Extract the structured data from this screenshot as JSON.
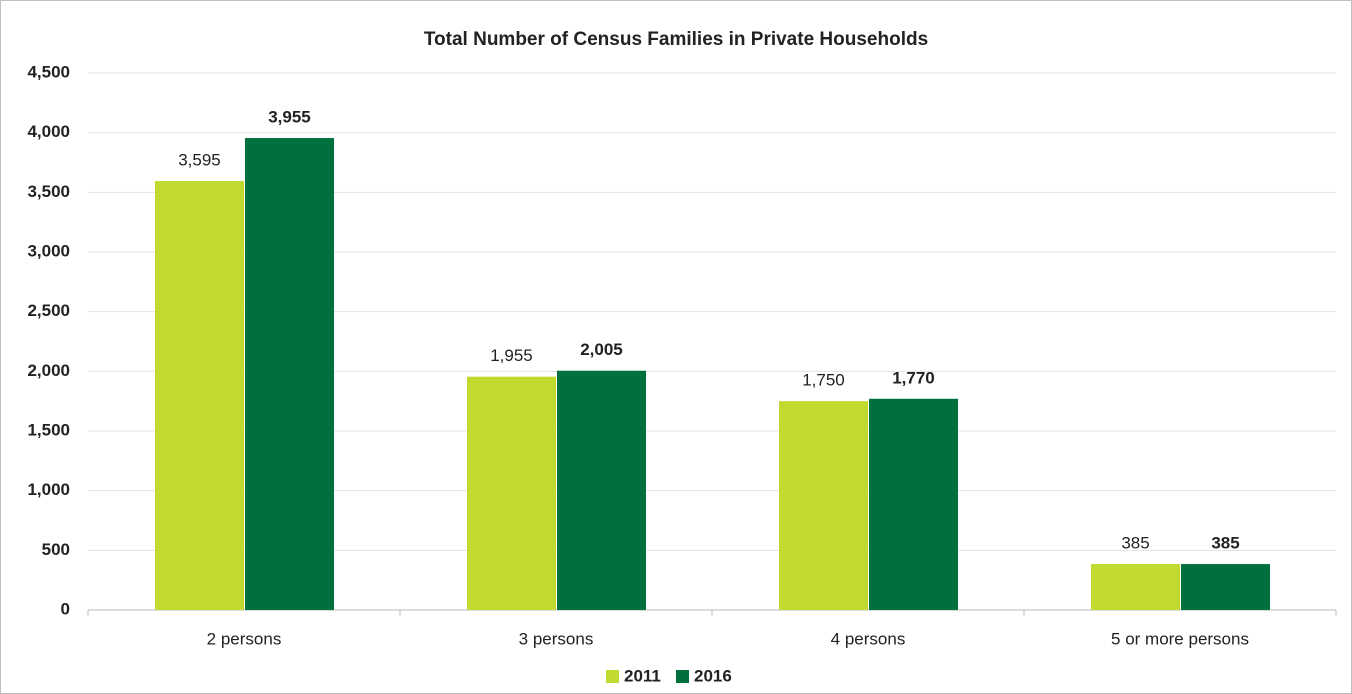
{
  "chart_data": {
    "type": "bar",
    "title": "Total Number of Census Families in Private Households",
    "categories": [
      "2 persons",
      "3 persons",
      "4 persons",
      "5 or more persons"
    ],
    "series": [
      {
        "name": "2011",
        "color": "#c2d92f",
        "values": [
          3595,
          1955,
          1750,
          385
        ],
        "value_labels": [
          "3,595",
          "1,955",
          "1,750",
          "385"
        ]
      },
      {
        "name": "2016",
        "color": "#00703c",
        "values": [
          3955,
          2005,
          1770,
          385
        ],
        "value_labels": [
          "3,955",
          "2,005",
          "1,770",
          "385"
        ]
      }
    ],
    "ylim": [
      0,
      4500
    ],
    "yticks": [
      0,
      500,
      {
        "value": 1000,
        "label": "1,000"
      },
      {
        "value": 1500,
        "label": "1,500"
      },
      {
        "value": 2000,
        "label": "2,000"
      },
      {
        "value": 2500,
        "label": "2,500"
      },
      {
        "value": 3000,
        "label": "3,000"
      },
      {
        "value": 3500,
        "label": "3,500"
      },
      {
        "value": 4000,
        "label": "4,000"
      },
      {
        "value": 4500,
        "label": "4,500"
      }
    ],
    "grid": true,
    "legend": "bottom"
  }
}
